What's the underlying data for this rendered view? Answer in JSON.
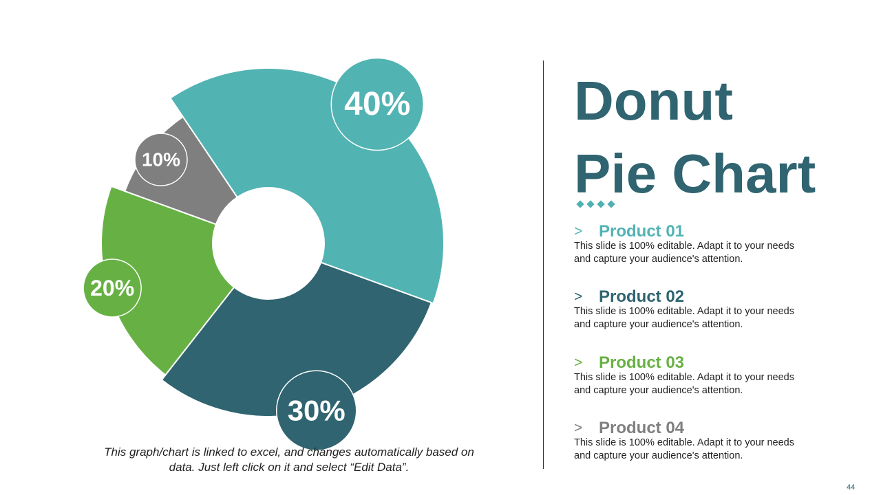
{
  "chart_data": {
    "type": "pie",
    "donut": true,
    "segments": [
      {
        "value": 20,
        "label": "20%",
        "color": "#67b144"
      },
      {
        "value": 10,
        "label": "10%",
        "color": "#7f7f7f"
      },
      {
        "value": 40,
        "label": "40%",
        "color": "#52b3b3"
      },
      {
        "value": 30,
        "label": "30%",
        "color": "#2f6470"
      }
    ]
  },
  "caption": {
    "line1": "This graph/chart is linked to excel, and changes automatically based on",
    "line2": "data. Just left click on it and select “Edit Data”."
  },
  "title": {
    "line1": "Donut",
    "line2": "Pie Chart",
    "color": "#2f6470"
  },
  "products": [
    {
      "arrow": ">",
      "name": "Product 01",
      "color": "#52b3b3",
      "desc_line1": "This slide is 100% editable. Adapt it to your needs",
      "desc_line2": "and capture your audience's attention."
    },
    {
      "arrow": ">",
      "name": "Product 02",
      "color": "#2f6470",
      "desc_line1": "This slide is 100% editable. Adapt it to your needs",
      "desc_line2": "and capture your audience's attention."
    },
    {
      "arrow": ">",
      "name": "Product 03",
      "color": "#67b144",
      "desc_line1": "This slide is 100% editable. Adapt it to your needs",
      "desc_line2": "and capture your audience's attention."
    },
    {
      "arrow": ">",
      "name": "Product 04",
      "color": "#7f7f7f",
      "desc_line1": "This slide is 100% editable. Adapt it to your needs",
      "desc_line2": "and capture your audience's attention."
    }
  ],
  "page_number": "44"
}
